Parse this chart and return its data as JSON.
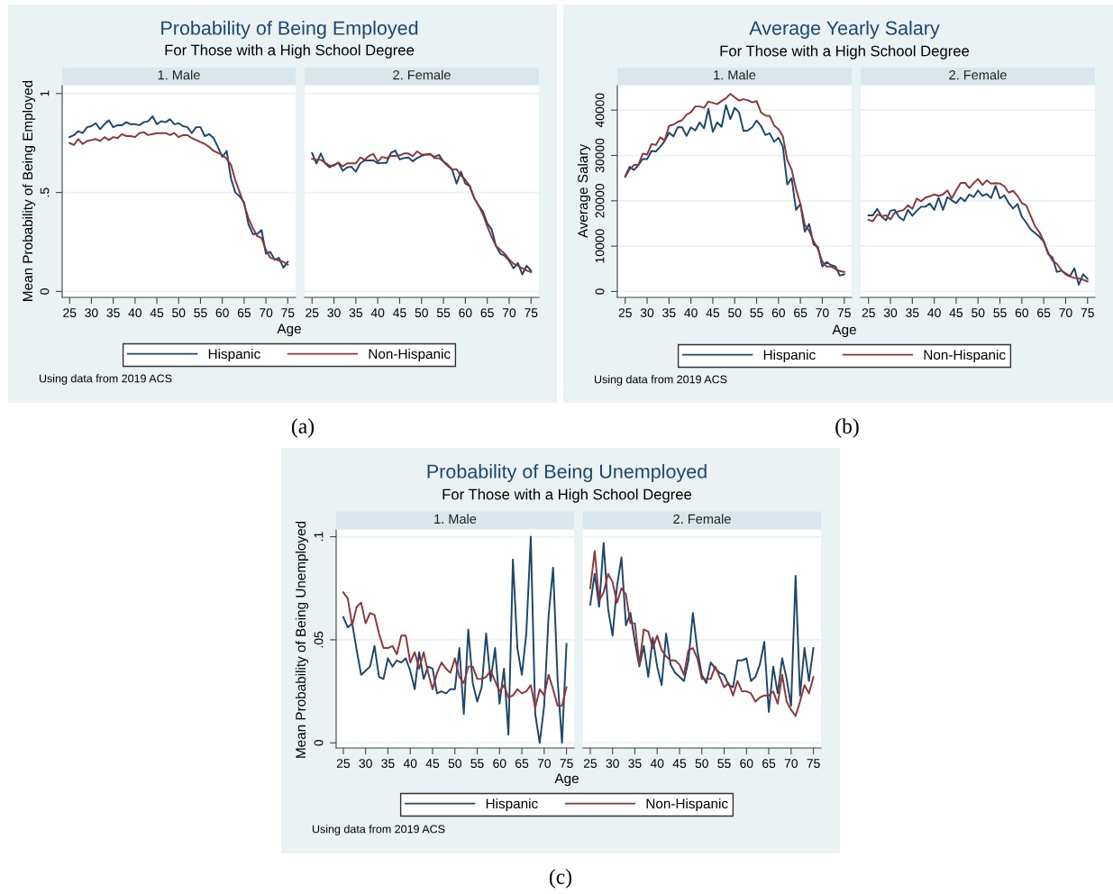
{
  "chart_data": [
    {
      "type": "line",
      "title": "Probability of Being Employed",
      "subtitle": "For Those with a High School Degree",
      "xlabel": "Age",
      "ylabel": "Mean Probability of Being Employed",
      "annotations": [
        "1. Male",
        "Using data from 2019 ACS",
        "(a)"
      ],
      "legend": "bottom",
      "grid": "y",
      "xlim": [
        23.3,
        76.8
      ],
      "ylim": [
        -0.03,
        1.04
      ],
      "xticks": [
        25,
        30,
        35,
        40,
        45,
        50,
        55,
        60,
        65,
        70,
        75
      ],
      "yticks": [
        0,
        {
          "value": 0.5,
          "label": ".5"
        },
        1
      ],
      "x": [
        25,
        26,
        27,
        28,
        29,
        30,
        31,
        32,
        33,
        34,
        35,
        36,
        37,
        38,
        39,
        40,
        41,
        42,
        43,
        44,
        45,
        46,
        47,
        48,
        49,
        50,
        51,
        52,
        53,
        54,
        55,
        56,
        57,
        58,
        59,
        60,
        61,
        62,
        63,
        64,
        65,
        66,
        67,
        68,
        69,
        70,
        71,
        72,
        73,
        74,
        75
      ],
      "series": [
        {
          "name": "Hispanic",
          "color": "#1a476f",
          "values": [
            0.78,
            0.79,
            0.81,
            0.8,
            0.83,
            0.835,
            0.85,
            0.82,
            0.845,
            0.865,
            0.83,
            0.84,
            0.84,
            0.855,
            0.845,
            0.845,
            0.84,
            0.855,
            0.86,
            0.885,
            0.845,
            0.86,
            0.855,
            0.87,
            0.845,
            0.85,
            0.835,
            0.83,
            0.8,
            0.83,
            0.83,
            0.785,
            0.795,
            0.775,
            0.73,
            0.68,
            0.71,
            0.57,
            0.5,
            0.48,
            0.45,
            0.34,
            0.29,
            0.29,
            0.31,
            0.19,
            0.2,
            0.16,
            0.17,
            0.12,
            0.15
          ]
        },
        {
          "name": "Non-Hispanic",
          "color": "#90353b",
          "values": [
            0.75,
            0.74,
            0.77,
            0.745,
            0.76,
            0.765,
            0.77,
            0.76,
            0.78,
            0.765,
            0.78,
            0.775,
            0.795,
            0.785,
            0.785,
            0.78,
            0.8,
            0.805,
            0.79,
            0.795,
            0.8,
            0.8,
            0.8,
            0.79,
            0.8,
            0.78,
            0.79,
            0.79,
            0.775,
            0.765,
            0.755,
            0.745,
            0.73,
            0.71,
            0.7,
            0.69,
            0.67,
            0.64,
            0.56,
            0.5,
            0.44,
            0.37,
            0.32,
            0.28,
            0.27,
            0.21,
            0.17,
            0.165,
            0.155,
            0.15,
            0.135
          ]
        }
      ]
    },
    {
      "type": "line",
      "annotations": [
        "2. Female"
      ],
      "grid": "y",
      "tick_labels": "x",
      "xlim": [
        23.3,
        76.8
      ],
      "ylim": [
        -0.03,
        1.04
      ],
      "xticks": [
        25,
        30,
        35,
        40,
        45,
        50,
        55,
        60,
        65,
        70,
        75
      ],
      "yticks": [
        0,
        {
          "value": 0.5,
          "label": null
        },
        {
          "value": 1,
          "label": null
        }
      ],
      "x": [
        25,
        26,
        27,
        28,
        29,
        30,
        31,
        32,
        33,
        34,
        35,
        36,
        37,
        38,
        39,
        40,
        41,
        42,
        43,
        44,
        45,
        46,
        47,
        48,
        49,
        50,
        51,
        52,
        53,
        54,
        55,
        56,
        57,
        58,
        59,
        60,
        61,
        62,
        63,
        64,
        65,
        66,
        67,
        68,
        69,
        70,
        71,
        72,
        73,
        74,
        75
      ],
      "series": [
        {
          "color": "#1a476f",
          "values": [
            0.7,
            0.647,
            0.697,
            0.647,
            0.627,
            0.64,
            0.65,
            0.61,
            0.627,
            0.63,
            0.605,
            0.647,
            0.662,
            0.662,
            0.662,
            0.647,
            0.65,
            0.65,
            0.7,
            0.712,
            0.667,
            0.674,
            0.677,
            0.658,
            0.674,
            0.685,
            0.692,
            0.692,
            0.68,
            0.69,
            0.655,
            0.635,
            0.615,
            0.545,
            0.605,
            0.545,
            0.533,
            0.473,
            0.435,
            0.405,
            0.344,
            0.314,
            0.23,
            0.19,
            0.18,
            0.155,
            0.117,
            0.144,
            0.086,
            0.13,
            0.105
          ]
        },
        {
          "color": "#90353b",
          "values": [
            0.67,
            0.665,
            0.665,
            0.65,
            0.636,
            0.636,
            0.652,
            0.632,
            0.647,
            0.647,
            0.647,
            0.677,
            0.665,
            0.685,
            0.695,
            0.655,
            0.68,
            0.673,
            0.685,
            0.685,
            0.688,
            0.697,
            0.697,
            0.683,
            0.708,
            0.692,
            0.692,
            0.695,
            0.673,
            0.673,
            0.658,
            0.64,
            0.617,
            0.617,
            0.586,
            0.564,
            0.533,
            0.473,
            0.435,
            0.39,
            0.33,
            0.276,
            0.23,
            0.21,
            0.19,
            0.162,
            0.14,
            0.13,
            0.117,
            0.106,
            0.097
          ]
        }
      ]
    },
    {
      "type": "line",
      "title": "Average Yearly Salary",
      "subtitle": "For Those with a High School Degree",
      "xlabel": "Age",
      "ylabel": "Average Salary",
      "annotations": [
        "1. Male",
        "Using data from 2019 ACS",
        "(b)"
      ],
      "legend": "bottom",
      "grid": "y",
      "xlim": [
        23.2,
        76.7
      ],
      "ylim": [
        -1300,
        45400
      ],
      "xticks": [
        25,
        30,
        35,
        40,
        45,
        50,
        55,
        60,
        65,
        70,
        75
      ],
      "yticks": [
        0,
        10000,
        20000,
        30000,
        40000
      ],
      "x": [
        25,
        26,
        27,
        28,
        29,
        30,
        31,
        32,
        33,
        34,
        35,
        36,
        37,
        38,
        39,
        40,
        41,
        42,
        43,
        44,
        45,
        46,
        47,
        48,
        49,
        50,
        51,
        52,
        53,
        54,
        55,
        56,
        57,
        58,
        59,
        60,
        61,
        62,
        63,
        64,
        65,
        66,
        67,
        68,
        69,
        70,
        71,
        72,
        73,
        74,
        75
      ],
      "series": [
        {
          "name": "Hispanic",
          "color": "#1a476f",
          "values": [
            25400,
            27500,
            26800,
            27900,
            29200,
            29200,
            31000,
            30900,
            31900,
            33200,
            35000,
            34200,
            36200,
            36200,
            34300,
            36200,
            35500,
            37300,
            36000,
            40300,
            35200,
            37300,
            36300,
            41100,
            38000,
            40500,
            39500,
            35400,
            35500,
            36200,
            37700,
            36500,
            34500,
            34900,
            33000,
            33900,
            31900,
            23600,
            25000,
            18000,
            19300,
            13200,
            14900,
            10400,
            9800,
            5500,
            6500,
            5800,
            5500,
            3500,
            3800
          ]
        },
        {
          "name": "Non-Hispanic",
          "color": "#90353b",
          "values": [
            25300,
            26900,
            27900,
            27900,
            30400,
            30200,
            32500,
            32300,
            34000,
            33300,
            36500,
            36800,
            37400,
            37800,
            39000,
            39500,
            40800,
            40800,
            40500,
            41900,
            41600,
            41300,
            42000,
            42600,
            43600,
            42800,
            42100,
            42400,
            42200,
            41700,
            42000,
            39500,
            38800,
            38700,
            36600,
            35800,
            34200,
            29000,
            26900,
            22600,
            19300,
            14700,
            13400,
            11100,
            9400,
            6600,
            5500,
            5500,
            5000,
            4500,
            4300
          ]
        }
      ]
    },
    {
      "type": "line",
      "annotations": [
        "2. Female"
      ],
      "grid": "y",
      "tick_labels": "x",
      "xlim": [
        23.2,
        76.7
      ],
      "ylim": [
        -1300,
        45400
      ],
      "xticks": [
        25,
        30,
        35,
        40,
        45,
        50,
        55,
        60,
        65,
        70,
        75
      ],
      "yticks": [
        {
          "value": 0,
          "label": null
        },
        {
          "value": 10000,
          "label": null
        },
        {
          "value": 20000,
          "label": null
        },
        {
          "value": 30000,
          "label": null
        },
        {
          "value": 40000,
          "label": null
        }
      ],
      "x": [
        25,
        26,
        27,
        28,
        29,
        30,
        31,
        32,
        33,
        34,
        35,
        36,
        37,
        38,
        39,
        40,
        41,
        42,
        43,
        44,
        45,
        46,
        47,
        48,
        49,
        50,
        51,
        52,
        53,
        54,
        55,
        56,
        57,
        58,
        59,
        60,
        61,
        62,
        63,
        64,
        65,
        66,
        67,
        68,
        69,
        70,
        71,
        72,
        73,
        74,
        75
      ],
      "series": [
        {
          "color": "#1a476f",
          "values": [
            16800,
            16800,
            18200,
            16500,
            15700,
            17800,
            18000,
            16400,
            15700,
            18000,
            16700,
            17800,
            18700,
            18700,
            19400,
            18000,
            20700,
            18000,
            20800,
            20100,
            19500,
            20700,
            19900,
            21400,
            20800,
            22300,
            21100,
            21500,
            20600,
            23300,
            20500,
            21200,
            19500,
            18300,
            19300,
            16500,
            15200,
            13700,
            12900,
            12100,
            11000,
            8300,
            7500,
            4300,
            4600,
            4000,
            3400,
            5100,
            1500,
            3800,
            2800
          ]
        },
        {
          "color": "#90353b",
          "values": [
            15800,
            15500,
            17000,
            16600,
            16800,
            15900,
            17400,
            17700,
            18000,
            19000,
            18200,
            20500,
            19900,
            20700,
            21000,
            21400,
            21100,
            21400,
            22300,
            20500,
            22300,
            23900,
            24000,
            22800,
            23900,
            24800,
            23500,
            24500,
            23800,
            23900,
            23800,
            23200,
            21800,
            22200,
            21100,
            19500,
            19000,
            16700,
            14400,
            13100,
            11100,
            8600,
            6800,
            6100,
            4800,
            3800,
            3300,
            3000,
            2900,
            2600,
            2200
          ]
        }
      ]
    },
    {
      "type": "line",
      "title": "Probability of Being Unemployed",
      "subtitle": "For Those with a High School Degree",
      "xlabel": "Age",
      "ylabel": "Mean Probability of Being Unemployed",
      "annotations": [
        "1. Male",
        "Using data from 2019 ACS",
        "(c)"
      ],
      "legend": "bottom",
      "grid": "y",
      "xlim": [
        23.4,
        76.7
      ],
      "ylim": [
        -0.0025,
        0.1033
      ],
      "xticks": [
        25,
        30,
        35,
        40,
        45,
        50,
        55,
        60,
        65,
        70,
        75
      ],
      "yticks": [
        0,
        {
          "value": 0.05,
          "label": ".05"
        },
        {
          "value": 0.1,
          "label": ".1"
        }
      ],
      "x": [
        25,
        26,
        27,
        28,
        29,
        30,
        31,
        32,
        33,
        34,
        35,
        36,
        37,
        38,
        39,
        40,
        41,
        42,
        43,
        44,
        45,
        46,
        47,
        48,
        49,
        50,
        51,
        52,
        53,
        54,
        55,
        56,
        57,
        58,
        59,
        60,
        61,
        62,
        63,
        64,
        65,
        66,
        67,
        68,
        69,
        70,
        71,
        72,
        73,
        74,
        75
      ],
      "series": [
        {
          "name": "Hispanic",
          "color": "#1a476f",
          "values": [
            0.061,
            0.056,
            0.058,
            0.045,
            0.033,
            0.035,
            0.037,
            0.047,
            0.032,
            0.031,
            0.041,
            0.037,
            0.04,
            0.039,
            0.041,
            0.035,
            0.026,
            0.044,
            0.031,
            0.037,
            0.036,
            0.024,
            0.025,
            0.024,
            0.026,
            0.026,
            0.046,
            0.014,
            0.055,
            0.029,
            0.02,
            0.027,
            0.053,
            0.03,
            0.046,
            0.019,
            0.036,
            0.004,
            0.089,
            0.046,
            0.033,
            0.053,
            0.1,
            0.014,
            0.0,
            0.018,
            0.062,
            0.085,
            0.031,
            0.0,
            0.048
          ]
        },
        {
          "name": "Non-Hispanic",
          "color": "#90353b",
          "values": [
            0.073,
            0.07,
            0.057,
            0.066,
            0.068,
            0.058,
            0.063,
            0.062,
            0.053,
            0.046,
            0.046,
            0.047,
            0.043,
            0.052,
            0.052,
            0.039,
            0.044,
            0.036,
            0.044,
            0.034,
            0.026,
            0.034,
            0.039,
            0.036,
            0.034,
            0.041,
            0.032,
            0.029,
            0.037,
            0.037,
            0.031,
            0.031,
            0.032,
            0.035,
            0.03,
            0.025,
            0.028,
            0.022,
            0.023,
            0.026,
            0.024,
            0.025,
            0.028,
            0.017,
            0.026,
            0.023,
            0.033,
            0.026,
            0.018,
            0.018,
            0.027
          ]
        }
      ]
    },
    {
      "type": "line",
      "annotations": [
        "2. Female"
      ],
      "grid": "y",
      "tick_labels": "x",
      "xlim": [
        23.4,
        76.7
      ],
      "ylim": [
        -0.0025,
        0.1033
      ],
      "xticks": [
        25,
        30,
        35,
        40,
        45,
        50,
        55,
        60,
        65,
        70,
        75
      ],
      "yticks": [
        {
          "value": 0,
          "label": null
        },
        {
          "value": 0.05,
          "label": null
        },
        {
          "value": 0.1,
          "label": null
        }
      ],
      "x": [
        25,
        26,
        27,
        28,
        29,
        30,
        31,
        32,
        33,
        34,
        35,
        36,
        37,
        38,
        39,
        40,
        41,
        42,
        43,
        44,
        45,
        46,
        47,
        48,
        49,
        50,
        51,
        52,
        53,
        54,
        55,
        56,
        57,
        58,
        59,
        60,
        61,
        62,
        63,
        64,
        65,
        66,
        67,
        68,
        69,
        70,
        71,
        72,
        73,
        74,
        75
      ],
      "series": [
        {
          "color": "#1a476f",
          "values": [
            0.067,
            0.082,
            0.066,
            0.097,
            0.065,
            0.052,
            0.076,
            0.09,
            0.057,
            0.063,
            0.049,
            0.037,
            0.047,
            0.032,
            0.051,
            0.037,
            0.028,
            0.053,
            0.038,
            0.034,
            0.032,
            0.03,
            0.04,
            0.063,
            0.045,
            0.033,
            0.029,
            0.039,
            0.036,
            0.034,
            0.033,
            0.028,
            0.027,
            0.04,
            0.04,
            0.041,
            0.03,
            0.032,
            0.038,
            0.049,
            0.015,
            0.037,
            0.024,
            0.041,
            0.031,
            0.018,
            0.081,
            0.023,
            0.046,
            0.03,
            0.046
          ]
        },
        {
          "color": "#90353b",
          "values": [
            0.075,
            0.093,
            0.069,
            0.073,
            0.082,
            0.078,
            0.068,
            0.075,
            0.072,
            0.058,
            0.058,
            0.038,
            0.055,
            0.054,
            0.046,
            0.052,
            0.045,
            0.042,
            0.04,
            0.04,
            0.038,
            0.033,
            0.045,
            0.046,
            0.041,
            0.031,
            0.031,
            0.031,
            0.037,
            0.032,
            0.027,
            0.029,
            0.023,
            0.03,
            0.025,
            0.025,
            0.024,
            0.02,
            0.022,
            0.023,
            0.023,
            0.025,
            0.019,
            0.033,
            0.02,
            0.016,
            0.013,
            0.02,
            0.028,
            0.024,
            0.032
          ]
        }
      ]
    }
  ]
}
